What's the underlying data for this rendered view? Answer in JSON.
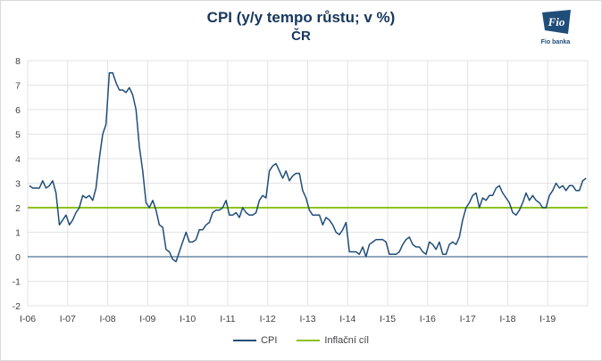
{
  "chart_data": {
    "type": "line",
    "title": "CPI (y/y tempo růstu; v %)",
    "subtitle": "ČR",
    "ylim": [
      -2,
      8
    ],
    "yticks": [
      "-2",
      "-1",
      "0",
      "1",
      "2",
      "3",
      "4",
      "5",
      "6",
      "7",
      "8"
    ],
    "grid": true,
    "legend_position": "bottom",
    "x_tick_labels": [
      "I-06",
      "I-07",
      "I-08",
      "I-09",
      "I-10",
      "I-11",
      "I-12",
      "I-13",
      "I-14",
      "I-15",
      "I-16",
      "I-17",
      "I-18",
      "I-19"
    ],
    "x_start": "2006-01",
    "series": [
      {
        "name": "CPI",
        "color": "#1f4e79",
        "values": [
          2.9,
          2.8,
          2.8,
          2.8,
          3.1,
          2.8,
          2.9,
          3.1,
          2.6,
          1.3,
          1.5,
          1.7,
          1.3,
          1.5,
          1.8,
          2.0,
          2.5,
          2.4,
          2.5,
          2.3,
          2.8,
          4.0,
          5.0,
          5.4,
          7.5,
          7.5,
          7.1,
          6.8,
          6.8,
          6.7,
          6.9,
          6.6,
          6.0,
          4.5,
          3.5,
          2.2,
          2.0,
          2.3,
          1.9,
          1.3,
          1.2,
          0.3,
          0.2,
          -0.1,
          -0.2,
          0.2,
          0.6,
          1.0,
          0.6,
          0.6,
          0.7,
          1.1,
          1.1,
          1.3,
          1.4,
          1.8,
          1.9,
          1.9,
          2.0,
          2.3,
          1.7,
          1.7,
          1.8,
          1.6,
          2.0,
          1.8,
          1.7,
          1.7,
          1.8,
          2.3,
          2.5,
          2.4,
          3.5,
          3.7,
          3.8,
          3.5,
          3.2,
          3.5,
          3.1,
          3.3,
          3.4,
          3.4,
          2.7,
          2.4,
          1.9,
          1.7,
          1.7,
          1.7,
          1.3,
          1.6,
          1.5,
          1.3,
          1.0,
          0.9,
          1.1,
          1.4,
          0.2,
          0.2,
          0.2,
          0.1,
          0.4,
          0.0,
          0.5,
          0.6,
          0.7,
          0.7,
          0.7,
          0.6,
          0.1,
          0.1,
          0.1,
          0.2,
          0.5,
          0.7,
          0.8,
          0.5,
          0.4,
          0.4,
          0.2,
          0.1,
          0.6,
          0.5,
          0.3,
          0.6,
          0.1,
          0.1,
          0.5,
          0.6,
          0.5,
          0.8,
          1.5,
          2.0,
          2.2,
          2.5,
          2.6,
          2.0,
          2.4,
          2.3,
          2.5,
          2.5,
          2.8,
          2.9,
          2.6,
          2.4,
          2.2,
          1.8,
          1.7,
          1.9,
          2.2,
          2.6,
          2.3,
          2.5,
          2.3,
          2.2,
          2.0,
          2.0,
          2.5,
          2.7,
          3.0,
          2.8,
          2.9,
          2.7,
          2.9,
          2.9,
          2.7,
          2.7,
          3.1,
          3.2
        ]
      },
      {
        "name": "Inflační cíl",
        "color": "#8dc21f",
        "values": [
          2,
          2
        ]
      }
    ]
  }
}
